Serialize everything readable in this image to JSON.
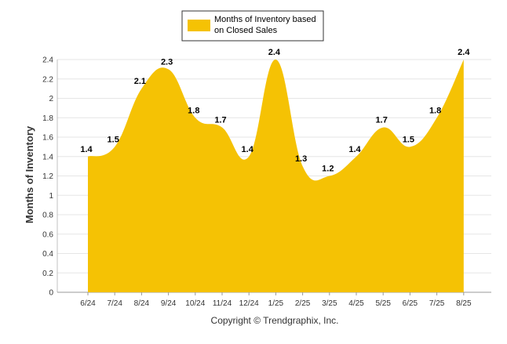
{
  "chart_data": {
    "type": "area",
    "categories": [
      "6/24",
      "7/24",
      "8/24",
      "9/24",
      "10/24",
      "11/24",
      "12/24",
      "1/25",
      "2/25",
      "3/25",
      "4/25",
      "5/25",
      "6/25",
      "7/25",
      "8/25"
    ],
    "series": [
      {
        "name": "Months of Inventory based on Closed Sales",
        "values": [
          1.4,
          1.5,
          2.1,
          2.3,
          1.8,
          1.7,
          1.4,
          2.4,
          1.3,
          1.2,
          1.4,
          1.7,
          1.5,
          1.8,
          2.4
        ]
      }
    ],
    "data_labels": [
      "1.4",
      "1.5",
      "2.1",
      "2.3",
      "1.8",
      "1.7",
      "1.4",
      "2.4",
      "1.3",
      "1.2",
      "1.4",
      "1.7",
      "1.5",
      "1.8",
      "2.4"
    ],
    "ylabel": "Months of Inventory",
    "xlabel": "",
    "ylim": [
      0,
      2.4
    ],
    "yticks": [
      "0",
      "0.2",
      "0.4",
      "0.6",
      "0.8",
      "1",
      "1.2",
      "1.4",
      "1.6",
      "1.8",
      "2",
      "2.2",
      "2.4"
    ],
    "grid": true,
    "legend_position": "top-center",
    "color": "#F5C204"
  },
  "legend": {
    "lines": [
      "Months of Inventory based",
      "on Closed Sales"
    ]
  },
  "footer": {
    "copyright": "Copyright © Trendgraphix, Inc."
  }
}
